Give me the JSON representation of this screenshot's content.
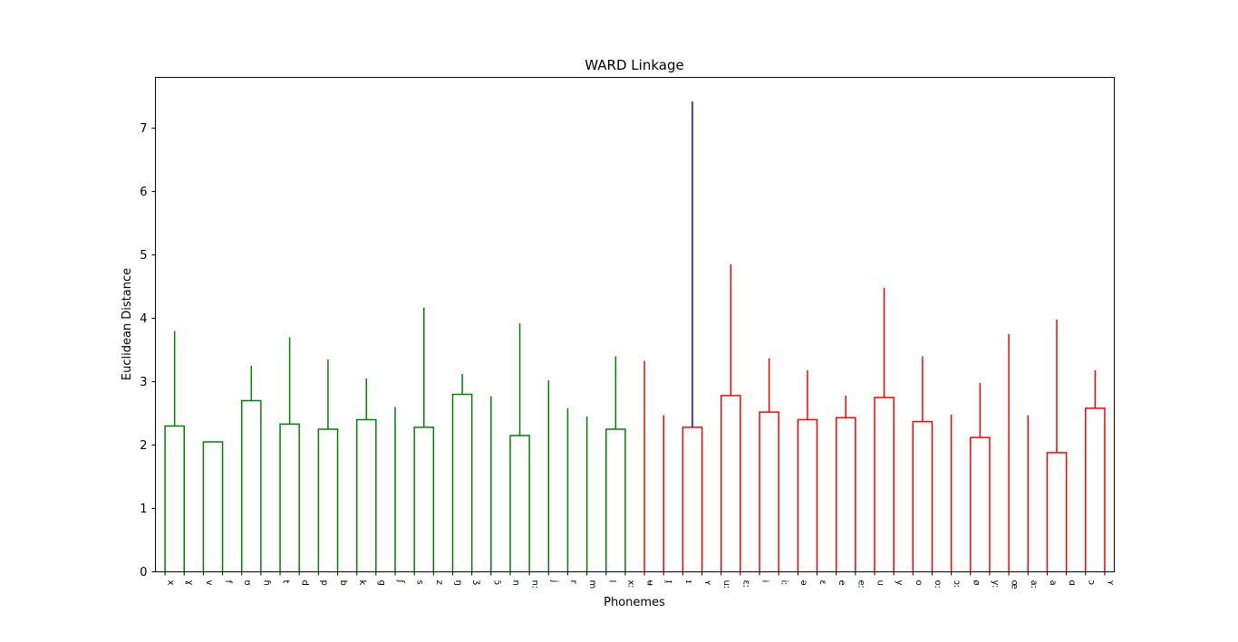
{
  "chart_data": {
    "type": "dendrogram",
    "title": "WARD Linkage",
    "xlabel": "Phonemes",
    "ylabel": "Euclidean Distance",
    "ylim": [
      0,
      7.8
    ],
    "yticks": [
      0,
      1,
      2,
      3,
      4,
      5,
      6,
      7
    ],
    "grid": false,
    "leaves": [
      "x",
      "ɣ",
      "v",
      "f",
      "ʊ",
      "ɦ",
      "t",
      "d",
      "p",
      "b",
      "k",
      "g",
      "ʃ",
      "s",
      "z",
      "ŋ",
      "ʒ",
      "ɔ̃",
      "n",
      "nː",
      "j",
      "r",
      "m",
      "l",
      "xː",
      "ʉ",
      "ɪ̯",
      "ɪ",
      "ʏ",
      "uː",
      "ɛː",
      "i",
      "iː",
      "ə",
      "ɛ",
      "e",
      "eː",
      "u",
      "y",
      "o",
      "oː",
      "ɔː",
      "ø",
      "yː",
      "œ",
      "aː",
      "a",
      "ɑ",
      "ɔ",
      "ʏ"
    ],
    "merges": [
      {
        "left": 0,
        "right": 1,
        "height": 2.3,
        "cluster": "green"
      },
      {
        "left": 2,
        "right": 3,
        "height": 2.05,
        "cluster": "green"
      },
      {
        "left": 4,
        "right": 5,
        "height": 2.7,
        "cluster": "green"
      },
      {
        "left": 52,
        "right": 53,
        "height": 3.25,
        "cluster": "green"
      },
      {
        "left": 6,
        "right": 7,
        "height": 2.33,
        "cluster": "green"
      },
      {
        "left": 8,
        "right": 9,
        "height": 2.25,
        "cluster": "green"
      },
      {
        "left": 10,
        "right": 11,
        "height": 2.4,
        "cluster": "green"
      },
      {
        "left": 56,
        "right": 57,
        "height": 3.05,
        "cluster": "green"
      },
      {
        "left": 55,
        "right": 58,
        "height": 3.35,
        "cluster": "green"
      },
      {
        "left": 54,
        "right": 59,
        "height": 3.7,
        "cluster": "green"
      },
      {
        "left": 50,
        "right": 60,
        "height": 3.8,
        "cluster": "green"
      },
      {
        "left": 13,
        "right": 14,
        "height": 2.28,
        "cluster": "green"
      },
      {
        "left": 12,
        "right": 62,
        "height": 2.6,
        "cluster": "green"
      },
      {
        "left": 15,
        "right": 16,
        "height": 2.8,
        "cluster": "green"
      },
      {
        "left": 63,
        "right": 64,
        "height": 3.12,
        "cluster": "green"
      },
      {
        "left": 18,
        "right": 19,
        "height": 2.15,
        "cluster": "green"
      },
      {
        "left": 17,
        "right": 66,
        "height": 2.77,
        "cluster": "green"
      },
      {
        "left": 23,
        "right": 24,
        "height": 2.25,
        "cluster": "green"
      },
      {
        "left": 22,
        "right": 68,
        "height": 2.45,
        "cluster": "green"
      },
      {
        "left": 21,
        "right": 69,
        "height": 2.58,
        "cluster": "green"
      },
      {
        "left": 20,
        "right": 70,
        "height": 3.02,
        "cluster": "green"
      },
      {
        "left": 67,
        "right": 71,
        "height": 3.4,
        "cluster": "green"
      },
      {
        "left": 65,
        "right": 72,
        "height": 3.92,
        "cluster": "green"
      },
      {
        "left": 61,
        "right": 73,
        "height": 4.17,
        "cluster": "green"
      },
      {
        "left": 27,
        "right": 28,
        "height": 2.28,
        "cluster": "red"
      },
      {
        "left": 26,
        "right": 75,
        "height": 2.47,
        "cluster": "red"
      },
      {
        "left": 25,
        "right": 76,
        "height": 3.33,
        "cluster": "red"
      },
      {
        "left": 29,
        "right": 30,
        "height": 2.78,
        "cluster": "red"
      },
      {
        "left": 31,
        "right": 32,
        "height": 2.52,
        "cluster": "red"
      },
      {
        "left": 33,
        "right": 34,
        "height": 2.4,
        "cluster": "red"
      },
      {
        "left": 35,
        "right": 36,
        "height": 2.43,
        "cluster": "red"
      },
      {
        "left": 80,
        "right": 81,
        "height": 2.78,
        "cluster": "red"
      },
      {
        "left": 79,
        "right": 82,
        "height": 3.18,
        "cluster": "red"
      },
      {
        "left": 78,
        "right": 83,
        "height": 3.37,
        "cluster": "red"
      },
      {
        "left": 37,
        "right": 38,
        "height": 2.75,
        "cluster": "red"
      },
      {
        "left": 39,
        "right": 40,
        "height": 2.37,
        "cluster": "red"
      },
      {
        "left": 42,
        "right": 43,
        "height": 2.12,
        "cluster": "red"
      },
      {
        "left": 41,
        "right": 87,
        "height": 2.48,
        "cluster": "red"
      },
      {
        "left": 86,
        "right": 88,
        "height": 2.98,
        "cluster": "red"
      },
      {
        "left": 85,
        "right": 89,
        "height": 3.4,
        "cluster": "red"
      },
      {
        "left": 46,
        "right": 47,
        "height": 1.88,
        "cluster": "red"
      },
      {
        "left": 45,
        "right": 91,
        "height": 2.47,
        "cluster": "red"
      },
      {
        "left": 48,
        "right": 49,
        "height": 2.58,
        "cluster": "red"
      },
      {
        "left": 92,
        "right": 93,
        "height": 3.18,
        "cluster": "red"
      },
      {
        "left": 44,
        "right": 94,
        "height": 3.75,
        "cluster": "red"
      },
      {
        "left": 90,
        "right": 95,
        "height": 3.98,
        "cluster": "red"
      },
      {
        "left": 84,
        "right": 96,
        "height": 4.48,
        "cluster": "red"
      },
      {
        "left": 77,
        "right": 97,
        "height": 4.85,
        "cluster": "red"
      },
      {
        "left": 74,
        "right": 98,
        "height": 7.42,
        "cluster": "blue"
      }
    ],
    "colors": {
      "green": "#008000",
      "red": "#ff0000",
      "blue": "#0000ff"
    }
  }
}
